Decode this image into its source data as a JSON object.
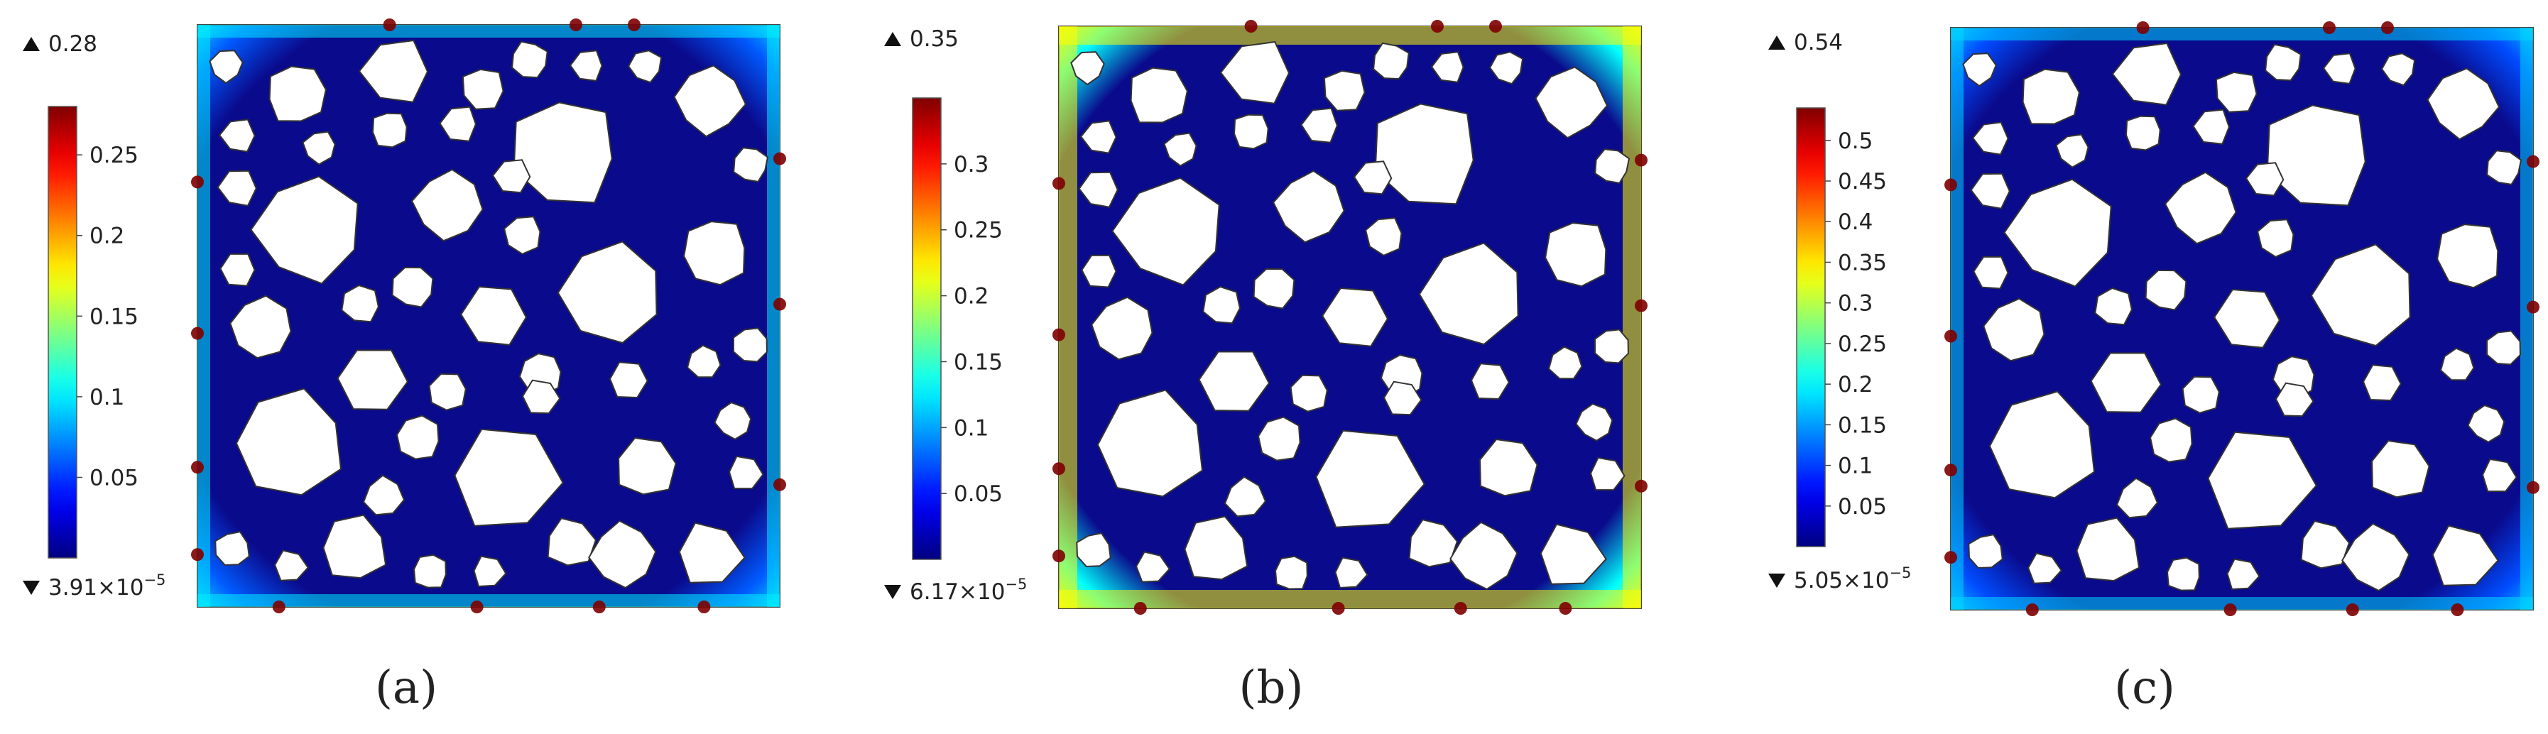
{
  "panels": [
    {
      "id": "a",
      "caption": "(a)",
      "max_label": "0.28",
      "min_prefix": "3.91×10",
      "min_exp": "−5",
      "ticks": [
        "0.25",
        "0.2",
        "0.15",
        "0.1",
        "0.05"
      ],
      "tick_values": [
        0.25,
        0.2,
        0.15,
        0.1,
        0.05
      ],
      "range": [
        3.91e-05,
        0.28
      ],
      "edge_level": 0.1,
      "hotspot_level": 0.28,
      "hotspots": "sparse"
    },
    {
      "id": "b",
      "caption": "(b)",
      "max_label": "0.35",
      "min_prefix": "6.17×10",
      "min_exp": "−5",
      "ticks": [
        "0.3",
        "0.25",
        "0.2",
        "0.15",
        "0.1",
        "0.05"
      ],
      "tick_values": [
        0.3,
        0.25,
        0.2,
        0.15,
        0.1,
        0.05
      ],
      "range": [
        6.17e-05,
        0.35
      ],
      "edge_level": 0.22,
      "hotspot_level": 0.35,
      "hotspots": "edge-band"
    },
    {
      "id": "c",
      "caption": "(c)",
      "max_label": "0.54",
      "min_prefix": "5.05×10",
      "min_exp": "−5",
      "ticks": [
        "0.5",
        "0.45",
        "0.4",
        "0.35",
        "0.3",
        "0.25",
        "0.2",
        "0.15",
        "0.1",
        "0.05"
      ],
      "tick_values": [
        0.5,
        0.45,
        0.4,
        0.35,
        0.3,
        0.25,
        0.2,
        0.15,
        0.1,
        0.05
      ],
      "range": [
        5.05e-05,
        0.54
      ],
      "edge_level": 0.18,
      "hotspot_level": 0.54,
      "hotspots": "sparse"
    }
  ],
  "colors": {
    "field_low": "#0a0a8c",
    "colormap": [
      "#000080",
      "#0000ff",
      "#0080ff",
      "#00ffff",
      "#80ff80",
      "#ffff00",
      "#ff8000",
      "#ff0000",
      "#800000"
    ],
    "aggregate": "#ffffff",
    "text": "#222222"
  }
}
